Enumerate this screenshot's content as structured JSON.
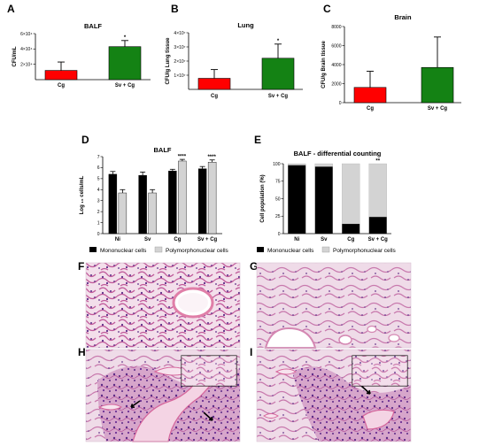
{
  "panel_labels": {
    "A": "A",
    "B": "B",
    "C": "C",
    "D": "D",
    "E": "E",
    "F": "F",
    "G": "G",
    "H": "H",
    "I": "I"
  },
  "colors": {
    "red": "#ff0000",
    "green": "#148214",
    "black": "#000000",
    "grey": "#d3d3d3"
  },
  "chart_data": [
    {
      "id": "A",
      "type": "bar",
      "title": "BALF",
      "ylabel": "CFU/mL",
      "categories": [
        "Cg",
        "Sv + Cg"
      ],
      "values": [
        12000,
        43000
      ],
      "errors": [
        11000,
        8000
      ],
      "ylim": [
        0,
        60000
      ],
      "yticks": [
        {
          "v": 20000,
          "label": "2×10⁴"
        },
        {
          "v": 40000,
          "label": "4×10⁴"
        },
        {
          "v": 60000,
          "label": "6×10⁴"
        }
      ],
      "significance": [
        "",
        "*"
      ]
    },
    {
      "id": "B",
      "type": "bar",
      "title": "Lung",
      "ylabel": "CFU/g Lung tissue",
      "categories": [
        "Cg",
        "Sv + Cg"
      ],
      "values": [
        7800000,
        22000000
      ],
      "errors": [
        6200000,
        10000000
      ],
      "ylim": [
        0,
        40000000
      ],
      "yticks": [
        {
          "v": 10000000,
          "label": "1×10⁷"
        },
        {
          "v": 20000000,
          "label": "2×10⁷"
        },
        {
          "v": 30000000,
          "label": "3×10⁷"
        },
        {
          "v": 40000000,
          "label": "4×10⁷"
        }
      ],
      "significance": [
        "",
        "*"
      ]
    },
    {
      "id": "C",
      "type": "bar",
      "title": "Brain",
      "ylabel": "CFU/g Brain tissue",
      "categories": [
        "Cg",
        "Sv + Cg"
      ],
      "values": [
        1600,
        3700
      ],
      "errors": [
        1700,
        3200
      ],
      "ylim": [
        0,
        8000
      ],
      "yticks": [
        {
          "v": 0,
          "label": "0"
        },
        {
          "v": 2000,
          "label": "2000"
        },
        {
          "v": 4000,
          "label": "4000"
        },
        {
          "v": 6000,
          "label": "6000"
        },
        {
          "v": 8000,
          "label": "8000"
        }
      ],
      "significance": [
        "",
        ""
      ]
    },
    {
      "id": "D",
      "type": "bar",
      "title": "BALF",
      "ylabel": "Log ₁₀ cells/mL",
      "categories": [
        "Ni",
        "Sv",
        "Cg",
        "Sv + Cg"
      ],
      "ylim": [
        0,
        7
      ],
      "yticks": [
        0,
        1,
        2,
        3,
        4,
        5,
        6,
        7
      ],
      "series": [
        {
          "name": "Mononuclear cells",
          "values": [
            5.4,
            5.3,
            5.7,
            5.9
          ],
          "errors": [
            0.25,
            0.3,
            0.15,
            0.2
          ]
        },
        {
          "name": "Polymorphonuclear cells",
          "values": [
            3.7,
            3.7,
            6.6,
            6.5
          ],
          "errors": [
            0.3,
            0.3,
            0.15,
            0.2
          ]
        }
      ],
      "significance": [
        "",
        "",
        "****",
        "****"
      ],
      "legend": [
        "Mononuclear cells",
        "Polymorphonuclear cells"
      ]
    },
    {
      "id": "E",
      "type": "bar",
      "stacked": true,
      "title": "BALF - differential counting",
      "ylabel": "Cell population (%)",
      "categories": [
        "Ni",
        "Sv",
        "Cg",
        "Sv + Cg"
      ],
      "ylim": [
        0,
        100
      ],
      "yticks": [
        0,
        25,
        50,
        75,
        100
      ],
      "series": [
        {
          "name": "Mononuclear cells",
          "values": [
            98,
            96,
            14,
            24
          ]
        },
        {
          "name": "Polymorphonuclear cells",
          "values": [
            2,
            4,
            86,
            76
          ]
        }
      ],
      "significance": [
        "",
        "",
        "",
        "**"
      ],
      "legend": [
        "Mononuclear cells",
        "Polymorphonuclear cells"
      ]
    }
  ]
}
